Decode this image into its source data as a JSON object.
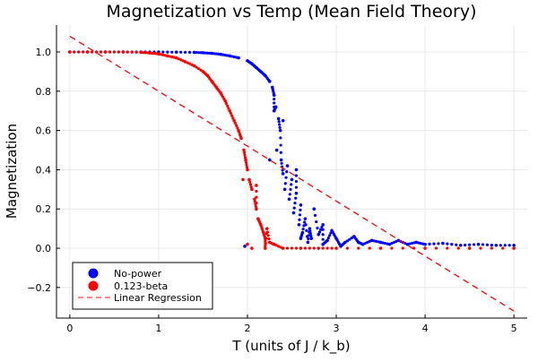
{
  "chart_data": {
    "type": "scatter",
    "title": "Magnetization vs Temp (Mean Field Theory)",
    "xlabel": "T (units of J / k_b)",
    "ylabel": "Magnetization",
    "xlim": [
      -0.15,
      5.15
    ],
    "ylim": [
      -0.356,
      1.137
    ],
    "xticks": [
      0,
      1,
      2,
      3,
      4,
      5
    ],
    "xtick_labels": [
      "0",
      "1",
      "2",
      "3",
      "4",
      "5"
    ],
    "yticks": [
      -0.2,
      0.0,
      0.2,
      0.4,
      0.6,
      0.8,
      1.0
    ],
    "ytick_labels": [
      "−0.2",
      "0.0",
      "0.2",
      "0.4",
      "0.6",
      "0.8",
      "1.0"
    ],
    "grid": true,
    "legend_position": "bottom-left",
    "series": [
      {
        "name": "No-power",
        "kind": "scatter",
        "color": "#0000ff",
        "points": [
          [
            0,
            1
          ],
          [
            0.2,
            1
          ],
          [
            0.4,
            1
          ],
          [
            0.6,
            1
          ],
          [
            0.8,
            1
          ],
          [
            1.0,
            1
          ],
          [
            1.2,
            0.999
          ],
          [
            1.4,
            0.998
          ],
          [
            1.5,
            0.996
          ],
          [
            1.6,
            0.993
          ],
          [
            1.7,
            0.988
          ],
          [
            1.8,
            0.98
          ],
          [
            1.9,
            0.97
          ],
          [
            2.0,
            0.955
          ],
          [
            2.05,
            0.94
          ],
          [
            2.1,
            0.92
          ],
          [
            2.15,
            0.9
          ],
          [
            2.2,
            0.88
          ],
          [
            2.25,
            0.85
          ],
          [
            2.28,
            0.82
          ],
          [
            2.3,
            0.78
          ],
          [
            2.32,
            0.72
          ],
          [
            2.35,
            0.66
          ],
          [
            2.37,
            0.6
          ],
          [
            2.3,
            0.7
          ],
          [
            2.33,
            0.5
          ],
          [
            2.38,
            0.45
          ],
          [
            2.4,
            0.38
          ],
          [
            2.42,
            0.3
          ],
          [
            2.45,
            0.42
          ],
          [
            2.47,
            0.25
          ],
          [
            2.5,
            0.35
          ],
          [
            2.52,
            0.18
          ],
          [
            2.55,
            0.28
          ],
          [
            2.58,
            0.12
          ],
          [
            2.6,
            0.22
          ],
          [
            2.62,
            0.08
          ],
          [
            2.65,
            0.15
          ],
          [
            2.7,
            0.1
          ],
          [
            2.72,
            0.05
          ],
          [
            2.75,
            0.2
          ],
          [
            2.8,
            0.07
          ],
          [
            2.85,
            0.12
          ],
          [
            2.9,
            0.04
          ],
          [
            2.95,
            0.09
          ],
          [
            3.0,
            0.05
          ],
          [
            3.1,
            0.03
          ],
          [
            3.2,
            0.06
          ],
          [
            3.3,
            0.02
          ],
          [
            3.4,
            0.04
          ],
          [
            3.5,
            0.03
          ],
          [
            3.6,
            0.02
          ],
          [
            3.7,
            0.04
          ],
          [
            3.8,
            0.02
          ],
          [
            3.9,
            0.03
          ],
          [
            4.0,
            0.02
          ],
          [
            4.2,
            0.025
          ],
          [
            4.4,
            0.015
          ],
          [
            4.6,
            0.02
          ],
          [
            4.8,
            0.015
          ],
          [
            5.0,
            0.015
          ],
          [
            2.25,
            0.45
          ],
          [
            2.4,
            0.65
          ],
          [
            2.55,
            0.4
          ],
          [
            1.97,
            0.01
          ],
          [
            2.6,
            0.05
          ],
          [
            2.68,
            0.03
          ],
          [
            2.85,
            0.02
          ],
          [
            3.05,
            0.01
          ],
          [
            3.25,
            0.03
          ]
        ]
      },
      {
        "name": "0.123-beta",
        "kind": "scatter",
        "color": "#ff0000",
        "points": [
          [
            0,
            1
          ],
          [
            0.2,
            1
          ],
          [
            0.4,
            1
          ],
          [
            0.6,
            1
          ],
          [
            0.8,
            0.998
          ],
          [
            0.9,
            0.995
          ],
          [
            1.0,
            0.99
          ],
          [
            1.1,
            0.98
          ],
          [
            1.2,
            0.97
          ],
          [
            1.3,
            0.95
          ],
          [
            1.4,
            0.93
          ],
          [
            1.5,
            0.9
          ],
          [
            1.55,
            0.88
          ],
          [
            1.6,
            0.85
          ],
          [
            1.65,
            0.82
          ],
          [
            1.7,
            0.79
          ],
          [
            1.75,
            0.75
          ],
          [
            1.8,
            0.7
          ],
          [
            1.85,
            0.65
          ],
          [
            1.9,
            0.6
          ],
          [
            1.93,
            0.56
          ],
          [
            1.96,
            0.5
          ],
          [
            1.98,
            0.45
          ],
          [
            2.0,
            0.4
          ],
          [
            2.02,
            0.35
          ],
          [
            2.05,
            0.3
          ],
          [
            2.08,
            0.25
          ],
          [
            2.1,
            0.2
          ],
          [
            2.12,
            0.15
          ],
          [
            2.15,
            0.12
          ],
          [
            2.18,
            0.08
          ],
          [
            2.2,
            0.05
          ],
          [
            2.22,
            0.1
          ],
          [
            2.25,
            0.03
          ],
          [
            2.3,
            0.02
          ],
          [
            1.95,
            0.35
          ],
          [
            2.1,
            0.32
          ],
          [
            2.0,
            0.02
          ],
          [
            2.05,
            0
          ],
          [
            2.2,
            0
          ],
          [
            2.4,
            0
          ],
          [
            2.6,
            0
          ],
          [
            2.8,
            0
          ],
          [
            3.0,
            0
          ],
          [
            3.5,
            0
          ],
          [
            4.0,
            0
          ],
          [
            4.5,
            0
          ],
          [
            5.0,
            0
          ]
        ]
      },
      {
        "name": "Linear Regression",
        "kind": "line",
        "style": "dashed",
        "color": "#ff0000",
        "intercept": 1.08,
        "slope": -0.28
      }
    ]
  }
}
